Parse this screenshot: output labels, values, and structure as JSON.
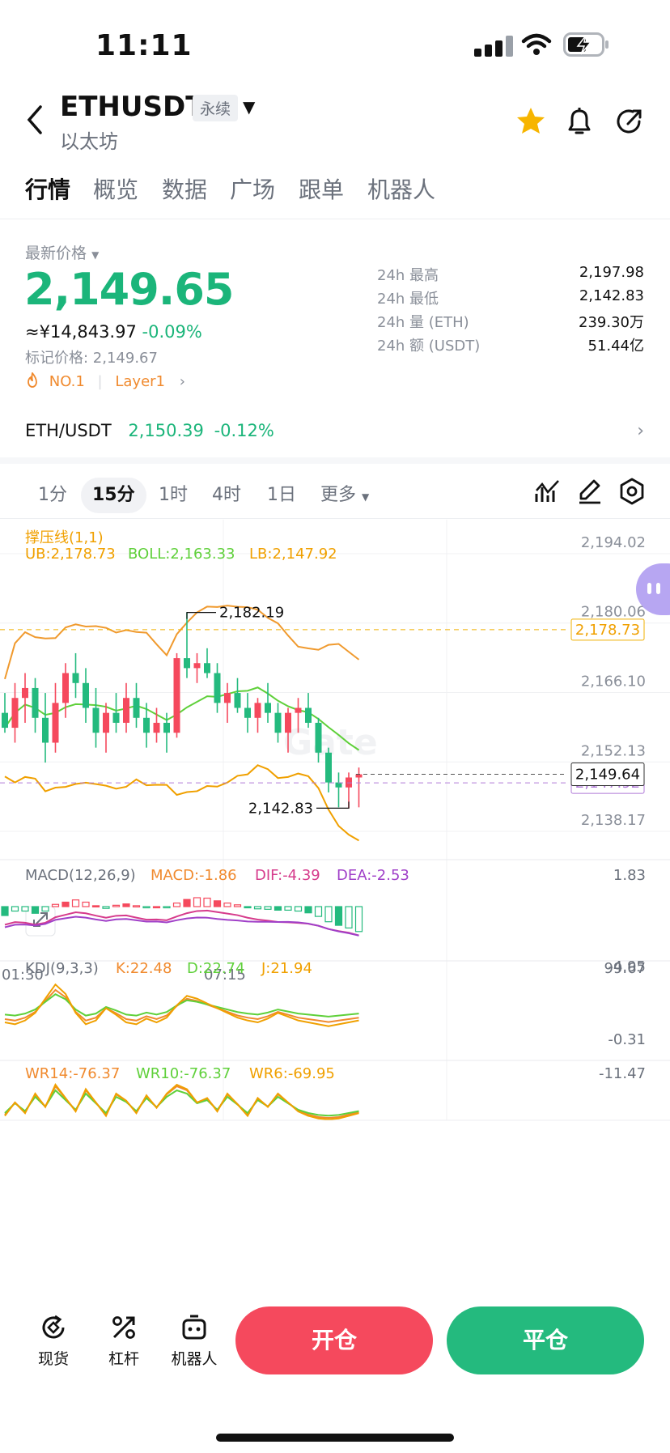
{
  "status_bar": {
    "time": "11:11"
  },
  "header": {
    "symbol": "ETHUSDT",
    "contract_type": "永续",
    "subtitle": "以太坊",
    "icons": [
      "star-icon",
      "bell-icon",
      "share-icon"
    ]
  },
  "tabs": [
    {
      "label": "行情",
      "active": true
    },
    {
      "label": "概览"
    },
    {
      "label": "数据"
    },
    {
      "label": "广场"
    },
    {
      "label": "跟单"
    },
    {
      "label": "机器人"
    }
  ],
  "price": {
    "label": "最新价格",
    "last": "2,149.65",
    "cny": "≈¥14,843.97",
    "change": "-0.09%",
    "mark_price": "标记价格: 2,149.67",
    "rank": "NO.1",
    "tag": "Layer1"
  },
  "stats": [
    {
      "key": "24h  最高",
      "value": "2,197.98"
    },
    {
      "key": "24h  最低",
      "value": "2,142.83"
    },
    {
      "key": "24h  量 (ETH)",
      "value": "239.30万"
    },
    {
      "key": "24h  额 (USDT)",
      "value": "51.44亿"
    }
  ],
  "spot": {
    "pair": "ETH/USDT",
    "price": "2,150.39",
    "change": "-0.12%"
  },
  "intervals": [
    {
      "label": "1分"
    },
    {
      "label": "15分",
      "active": true
    },
    {
      "label": "1时"
    },
    {
      "label": "4时"
    },
    {
      "label": "1日"
    },
    {
      "label": "更多"
    }
  ],
  "chart_data": {
    "type": "candlestick",
    "overlay_title": "撑压线(1,1)",
    "boll": {
      "ub": "UB:2,178.73",
      "mid": "BOLL:2,163.33",
      "lb": "LB:2,147.92"
    },
    "y_ticks": [
      "2,194.02",
      "2,180.06",
      "2,166.10",
      "2,152.13",
      "2,138.17"
    ],
    "ylim": [
      2138.17,
      2194.02
    ],
    "x_ticks": [
      "01:30",
      "07:15"
    ],
    "high_marker": "2,182.19",
    "low_marker": "2,142.83",
    "current_tag": "2,149.64",
    "ub_tag": "2,178.73",
    "lb_tag": "2,147.92",
    "watermark": "Gate",
    "candles": [
      [
        2162,
        2166,
        2158,
        2159
      ],
      [
        2159,
        2168,
        2156,
        2165
      ],
      [
        2165,
        2170,
        2160,
        2167
      ],
      [
        2167,
        2169,
        2158,
        2161
      ],
      [
        2161,
        2166,
        2152,
        2156
      ],
      [
        2156,
        2168,
        2154,
        2164
      ],
      [
        2164,
        2172,
        2161,
        2170
      ],
      [
        2170,
        2174,
        2165,
        2168
      ],
      [
        2168,
        2171,
        2160,
        2163
      ],
      [
        2163,
        2167,
        2155,
        2158
      ],
      [
        2158,
        2164,
        2154,
        2162
      ],
      [
        2162,
        2166,
        2158,
        2160
      ],
      [
        2160,
        2168,
        2158,
        2165
      ],
      [
        2165,
        2168,
        2159,
        2161
      ],
      [
        2161,
        2164,
        2155,
        2158
      ],
      [
        2158,
        2163,
        2156,
        2160
      ],
      [
        2160,
        2162,
        2154,
        2158
      ],
      [
        2158,
        2174,
        2157,
        2173
      ],
      [
        2173,
        2182.19,
        2169,
        2171
      ],
      [
        2171,
        2174,
        2168,
        2172
      ],
      [
        2172,
        2175,
        2169,
        2170
      ],
      [
        2170,
        2172,
        2162,
        2164
      ],
      [
        2164,
        2168,
        2160,
        2166
      ],
      [
        2166,
        2169,
        2162,
        2163
      ],
      [
        2163,
        2166,
        2158,
        2161
      ],
      [
        2161,
        2165,
        2158,
        2164
      ],
      [
        2164,
        2168,
        2160,
        2162
      ],
      [
        2162,
        2164,
        2156,
        2158
      ],
      [
        2158,
        2163,
        2154,
        2162
      ],
      [
        2162,
        2165,
        2158,
        2163
      ],
      [
        2163,
        2166,
        2159,
        2160
      ],
      [
        2160,
        2161,
        2152,
        2154
      ],
      [
        2154,
        2155,
        2146,
        2148
      ],
      [
        2148,
        2150,
        2143,
        2147
      ],
      [
        2147,
        2150,
        2142.83,
        2149
      ],
      [
        2149,
        2151,
        2143,
        2149.64
      ]
    ],
    "macd": {
      "title": "MACD(12,26,9)",
      "macd": "MACD:-1.86",
      "dif": "DIF:-4.39",
      "dea": "DEA:-2.53",
      "top": "1.83",
      "bottom": "-4.95"
    },
    "kdj": {
      "title": "KDJ(9,3,3)",
      "k": "K:22.48",
      "d": "D:22.74",
      "j": "J:21.94",
      "top": "99.67",
      "bottom": "-0.31"
    },
    "wr": {
      "wr14": "WR14:-76.37",
      "wr10": "WR10:-76.37",
      "wr6": "WR6:-69.95",
      "top": "-11.47"
    }
  },
  "bottom_nav": [
    {
      "label": "现货",
      "icon": "spot-icon"
    },
    {
      "label": "杠杆",
      "icon": "leverage-icon"
    },
    {
      "label": "机器人",
      "icon": "robot-icon"
    }
  ],
  "actions": {
    "open": "开仓",
    "close": "平仓"
  },
  "colors": {
    "up": "#24ba7e",
    "down": "#f5495d",
    "boll_ub": "#f09a2e",
    "boll_mid": "#5fd03a",
    "boll_lb": "#f0a000"
  }
}
